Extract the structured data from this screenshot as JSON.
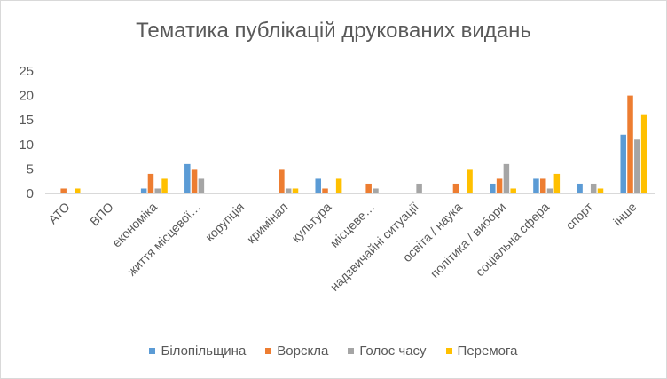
{
  "chart_data": {
    "type": "bar",
    "title": "Тематика публікацій друкованих видань",
    "categories": [
      "АТО",
      "ВПО",
      "економіка",
      "життя місцевої…",
      "корупція",
      "кримінал",
      "культура",
      "місцеве…",
      "надзвичайні ситуації",
      "освіта / наука",
      "політика / вибори",
      "соціальна сфера",
      "спорт",
      "інше"
    ],
    "series": [
      {
        "name": "Білопільщина",
        "color": "#5b9bd5",
        "values": [
          0,
          0,
          1,
          6,
          0,
          0,
          3,
          0,
          0,
          0,
          2,
          3,
          2,
          12
        ]
      },
      {
        "name": "Ворскла",
        "color": "#ed7d31",
        "values": [
          1,
          0,
          4,
          5,
          0,
          5,
          1,
          2,
          0,
          2,
          3,
          3,
          0,
          20
        ]
      },
      {
        "name": "Голос часу",
        "color": "#a5a5a5",
        "values": [
          0,
          0,
          1,
          3,
          0,
          1,
          0,
          1,
          2,
          0,
          6,
          1,
          2,
          11
        ]
      },
      {
        "name": "Перемога",
        "color": "#ffc000",
        "values": [
          1,
          0,
          3,
          0,
          0,
          1,
          3,
          0,
          0,
          5,
          1,
          4,
          1,
          16
        ]
      }
    ],
    "ylim": [
      0,
      25
    ],
    "yticks": [
      0,
      5,
      10,
      15,
      20,
      25
    ],
    "grid": false,
    "legend": "bottom"
  }
}
